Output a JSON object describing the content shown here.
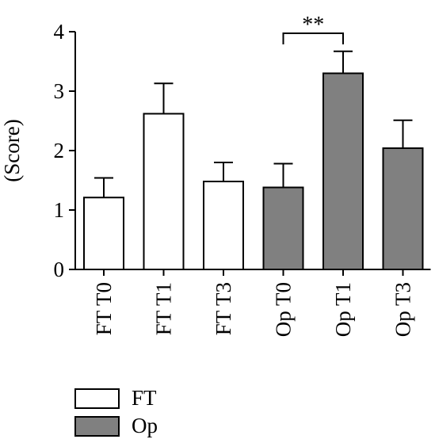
{
  "chart_data": {
    "type": "bar",
    "title": "",
    "xlabel": "",
    "ylabel": "(Score)",
    "ylim": [
      0,
      4
    ],
    "yticks": [
      0,
      1,
      2,
      3,
      4
    ],
    "grid": false,
    "legend_position": "bottom-left",
    "categories": [
      "FT T0",
      "FT T1",
      "FT T3",
      "Op T0",
      "Op T1",
      "Op T3"
    ],
    "values": [
      1.21,
      2.62,
      1.48,
      1.38,
      3.3,
      2.04
    ],
    "errors": [
      0.33,
      0.51,
      0.32,
      0.4,
      0.37,
      0.47
    ],
    "groups": [
      "FT",
      "FT",
      "FT",
      "Op",
      "Op",
      "Op"
    ],
    "legend": [
      {
        "name": "FT",
        "color": "#ffffff"
      },
      {
        "name": "Op",
        "color": "#808080"
      }
    ],
    "annotations": [
      {
        "text": "**",
        "from": "Op T0",
        "to": "Op T1"
      }
    ]
  }
}
